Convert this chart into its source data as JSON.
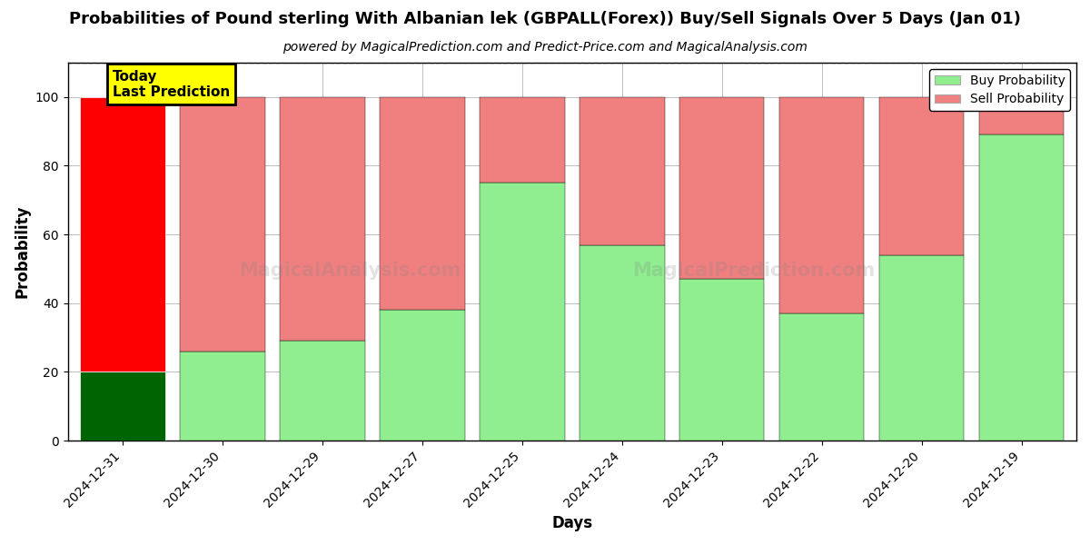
{
  "title": "Probabilities of Pound sterling With Albanian lek (GBPALL(Forex)) Buy/Sell Signals Over 5 Days (Jan 01)",
  "subtitle": "powered by MagicalPrediction.com and Predict-Price.com and MagicalAnalysis.com",
  "xlabel": "Days",
  "ylabel": "Probability",
  "categories": [
    "2024-12-31",
    "2024-12-30",
    "2024-12-29",
    "2024-12-27",
    "2024-12-25",
    "2024-12-24",
    "2024-12-23",
    "2024-12-22",
    "2024-12-20",
    "2024-12-19"
  ],
  "buy_values": [
    20,
    26,
    29,
    38,
    75,
    57,
    47,
    37,
    54,
    89
  ],
  "sell_values": [
    80,
    74,
    71,
    62,
    25,
    43,
    53,
    63,
    46,
    11
  ],
  "today_buy_color": "#006400",
  "today_sell_color": "#FF0000",
  "buy_color": "#90EE90",
  "sell_color": "#F08080",
  "today_label": "Today\nLast Prediction",
  "today_label_bg": "#FFFF00",
  "legend_buy_label": "Buy Probability",
  "legend_sell_label": "Sell Probability",
  "ylim": [
    0,
    110
  ],
  "yticks": [
    0,
    20,
    40,
    60,
    80,
    100
  ],
  "dashed_line_y": 110,
  "bar_width": 0.85,
  "figsize": [
    12.0,
    6.0
  ],
  "dpi": 100,
  "title_fontsize": 13,
  "subtitle_fontsize": 10,
  "axis_label_fontsize": 12,
  "tick_fontsize": 10
}
